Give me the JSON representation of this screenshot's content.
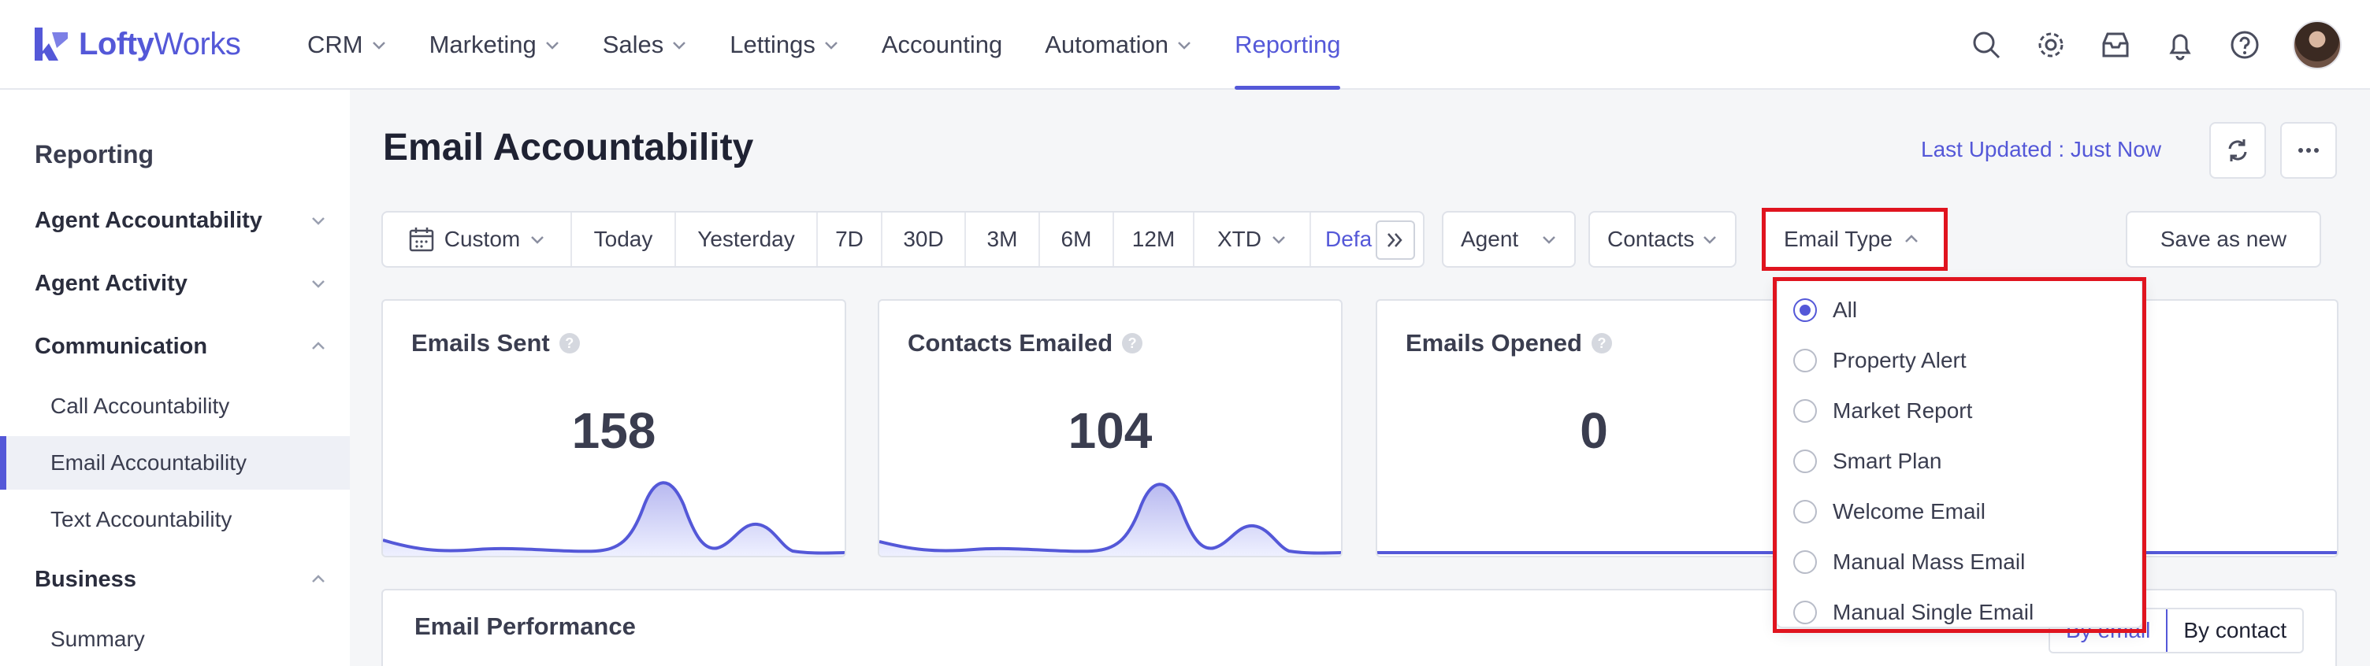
{
  "brand": {
    "name_bold": "Lofty",
    "name_rest": "Works",
    "accent": "#5458d8"
  },
  "nav": {
    "items": [
      {
        "label": "CRM",
        "dropdown": true
      },
      {
        "label": "Marketing",
        "dropdown": true
      },
      {
        "label": "Sales",
        "dropdown": true
      },
      {
        "label": "Lettings",
        "dropdown": true
      },
      {
        "label": "Accounting",
        "dropdown": false
      },
      {
        "label": "Automation",
        "dropdown": true
      },
      {
        "label": "Reporting",
        "dropdown": false,
        "active": true
      }
    ],
    "icons": [
      "search-icon",
      "settings-gear-icon",
      "inbox-icon",
      "bell-icon",
      "help-icon"
    ]
  },
  "sidebar": {
    "title": "Reporting",
    "groups": [
      {
        "label": "Agent Accountability",
        "expanded": false
      },
      {
        "label": "Agent Activity",
        "expanded": false
      },
      {
        "label": "Communication",
        "expanded": true
      },
      {
        "label": "Business",
        "expanded": true
      }
    ],
    "communication_items": [
      "Call Accountability",
      "Email Accountability",
      "Text Accountability"
    ],
    "business_items": [
      "Summary"
    ],
    "active_item": "Email Accountability"
  },
  "page": {
    "title": "Email Accountability",
    "last_updated": "Last Updated : Just Now"
  },
  "filters": {
    "date_custom": "Custom",
    "date_ranges": [
      "Today",
      "Yesterday",
      "7D",
      "30D",
      "3M",
      "6M",
      "12M",
      "XTD"
    ],
    "default_link": "Defa",
    "agent": "Agent",
    "contacts": "Contacts",
    "email_type": "Email Type",
    "save_as_new": "Save as new"
  },
  "stats": [
    {
      "title": "Emails Sent",
      "value": "158"
    },
    {
      "title": "Contacts Emailed",
      "value": "104"
    },
    {
      "title": "Emails Opened",
      "value": "0"
    }
  ],
  "email_type_menu": {
    "selected": "All",
    "options": [
      "All",
      "Property Alert",
      "Market Report",
      "Smart Plan",
      "Welcome Email",
      "Manual Mass Email",
      "Manual Single Email"
    ]
  },
  "performance": {
    "title": "Email Performance",
    "toggle_by_email": "By email",
    "toggle_by_contact": "By contact"
  },
  "colors": {
    "highlight_border": "#e0141f",
    "spark_fill": "#c9caf3"
  }
}
